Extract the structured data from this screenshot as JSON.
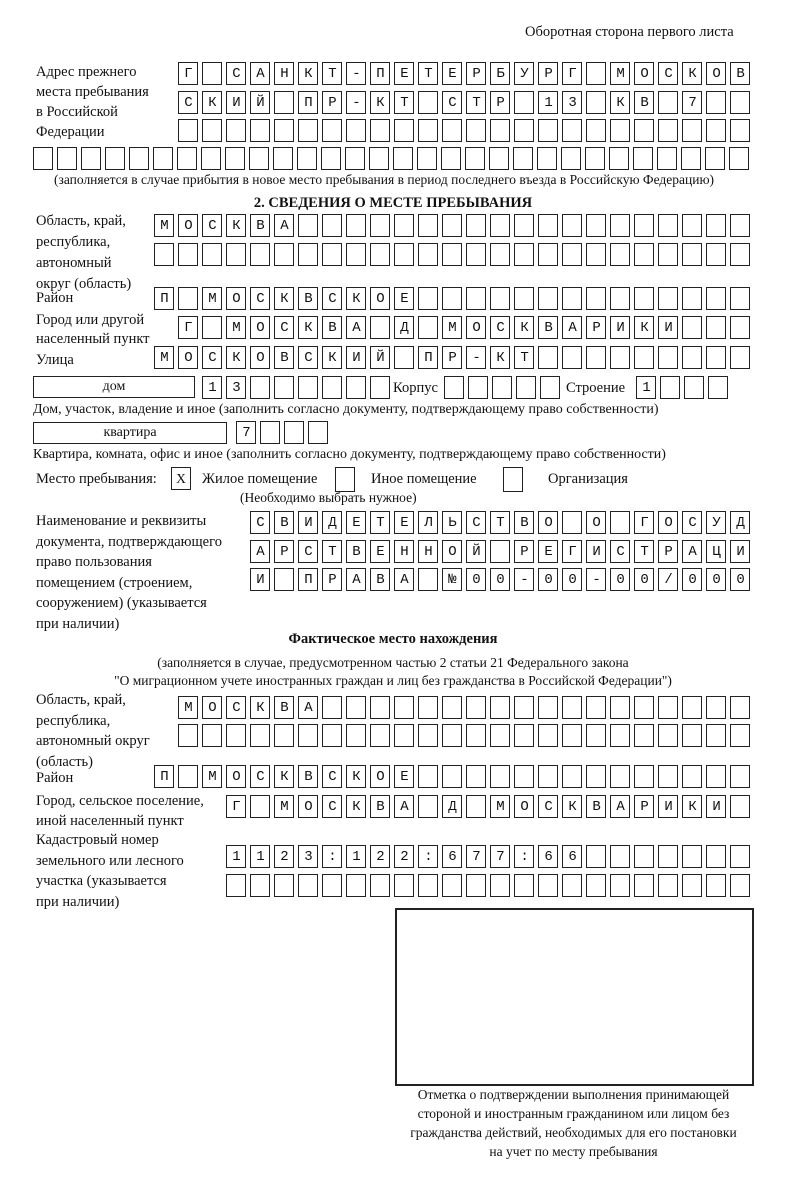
{
  "header": "Оборотная сторона первого листа",
  "previous_address": {
    "label": [
      "Адрес прежнего",
      "места пребывания",
      "в Российской",
      "Федерации"
    ],
    "rows": [
      "Г САНКТ-ПЕТЕРБУРГ МОСКОВ",
      "СКИЙ ПР-КТ СТР 13 КВ 7  ",
      "                        ",
      "                              "
    ],
    "note": "(заполняется в случае прибытия в новое место пребывания в период последнего въезда в Российскую Федерацию)"
  },
  "section2": {
    "title": "2. СВЕДЕНИЯ О МЕСТЕ ПРЕБЫВАНИЯ",
    "region_label": [
      "Область, край,",
      "республика,",
      "автономный",
      "округ (область)"
    ],
    "region_rows": [
      "МОСКВА                   ",
      "                         "
    ],
    "district_label": [
      "Район"
    ],
    "district_row": "П МОСКВСКОЕ              ",
    "city_label": [
      "Город или другой",
      "населенный пункт"
    ],
    "city_row": "Г МОСКВА Д МОСКВАРИКИ   ",
    "street_label": [
      "Улица"
    ],
    "street_row": "МОСКОВСКИЙ ПР-КТ         ",
    "house_type": "дом",
    "house_row": "13      ",
    "korpus_label": "Корпус",
    "korpus_row": "     ",
    "building_label": "Строение",
    "building_row": "1   ",
    "house_note": "Дом, участок, владение и иное (заполнить согласно документу, подтверждающему право собственности)",
    "flat_type": "квартира",
    "flat_row": "7   ",
    "flat_note": "Квартира, комната, офис и иное (заполнить согласно документу, подтверждающему право собственности)",
    "stay_place_label": "Место пребывания:",
    "options": [
      {
        "label": "Жилое помещение",
        "mark": "X",
        "checked": true
      },
      {
        "label": "Иное помещение",
        "mark": "",
        "checked": false
      },
      {
        "label": "Организация",
        "mark": "",
        "checked": false
      }
    ],
    "options_note": "(Необходимо выбрать нужное)",
    "document_label": [
      "Наименование и реквизиты",
      "документа, подтверждающего",
      "право пользования",
      "помещением (строением,",
      "сооружением) (указывается",
      "при наличии)"
    ],
    "document_rows": [
      "СВИДЕТЕЛЬСТВО О ГОСУД",
      "АРСТВЕННОЙ РЕГИСТРАЦИ",
      "И ПРАВА №00-00-00/000"
    ]
  },
  "actual": {
    "title": "Фактическое место нахождения",
    "note": [
      "(заполняется в случае, предусмотренном частью 2 статьи 21 Федерального закона",
      "\"О миграционном учете иностранных граждан и лиц без гражданства в Российской Федерации\")"
    ],
    "region_label": [
      "Область, край,",
      "республика,",
      "автономный округ",
      "(область)"
    ],
    "region_rows": [
      "МОСКВА                  ",
      "                        "
    ],
    "district_label": [
      "Район"
    ],
    "district_row": "П МОСКВСКОЕ              ",
    "city_label": [
      "Город, сельское поселение,",
      "иной населенный пункт"
    ],
    "city_row": "Г МОСКВА Д МОСКВАРИКИ ",
    "cadastral_label": [
      "Кадастровый номер",
      "земельного или лесного",
      "участка (указывается",
      "при наличии)"
    ],
    "cadastral_rows": [
      "1123:122:677:66       ",
      "                      "
    ]
  },
  "confirmation": {
    "caption": [
      "Отметка о подтверждении выполнения принимающей",
      "стороной и иностранным гражданином или лицом без",
      "гражданства действий, необходимых для его постановки",
      "на учет по месту пребывания"
    ]
  }
}
